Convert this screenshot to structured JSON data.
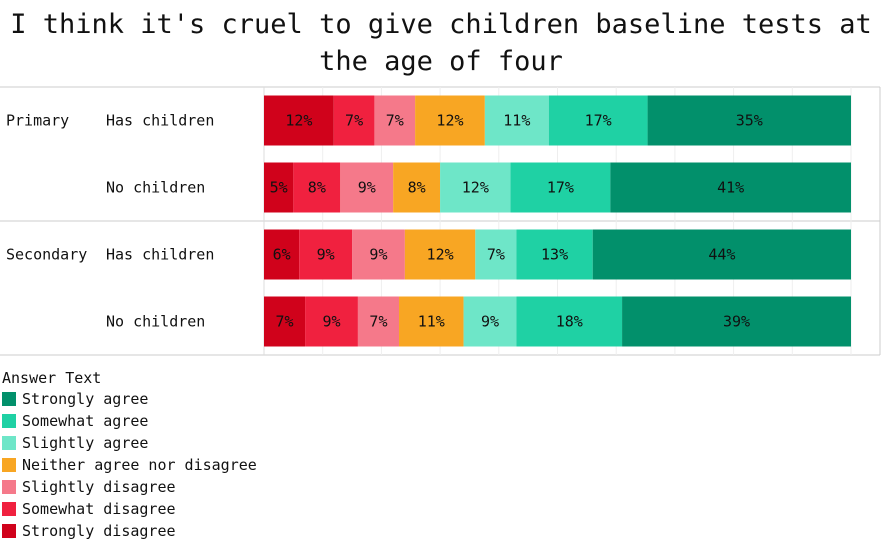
{
  "chart_data": {
    "type": "bar",
    "orientation": "horizontal",
    "stacked": true,
    "normalized": true,
    "title": "I think it's cruel to give children baseline tests at the age of four",
    "groups": [
      {
        "label": "Primary",
        "rows": [
          "Has children",
          "No children"
        ]
      },
      {
        "label": "Secondary",
        "rows": [
          "Has children",
          "No children"
        ]
      }
    ],
    "categories": [
      "Primary · Has children",
      "Primary · No children",
      "Secondary · Has children",
      "Secondary · No children"
    ],
    "series": [
      {
        "name": "Strongly disagree",
        "color": "#d0021b",
        "values": [
          12,
          5,
          6,
          7
        ]
      },
      {
        "name": "Somewhat disagree",
        "color": "#f0213f",
        "values": [
          7,
          8,
          9,
          9
        ]
      },
      {
        "name": "Slightly disagree",
        "color": "#f5798a",
        "values": [
          7,
          9,
          9,
          7
        ]
      },
      {
        "name": "Neither agree nor disagree",
        "color": "#f8a623",
        "values": [
          12,
          8,
          12,
          11
        ]
      },
      {
        "name": "Slightly agree",
        "color": "#6ee6c8",
        "values": [
          11,
          12,
          7,
          9
        ]
      },
      {
        "name": "Somewhat agree",
        "color": "#1fd1a4",
        "values": [
          17,
          17,
          13,
          18
        ]
      },
      {
        "name": "Strongly agree",
        "color": "#02906b",
        "values": [
          35,
          41,
          44,
          39
        ]
      }
    ],
    "legend": {
      "title": "Answer Text",
      "position": "bottom-left",
      "order": [
        "Strongly agree",
        "Somewhat agree",
        "Slightly agree",
        "Neither agree nor disagree",
        "Slightly disagree",
        "Somewhat disagree",
        "Strongly disagree"
      ]
    },
    "grid": true
  }
}
